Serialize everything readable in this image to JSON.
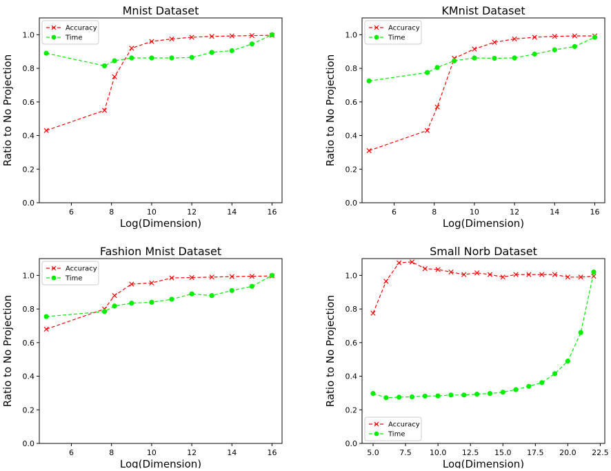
{
  "chart_data": [
    {
      "type": "line",
      "title": "Mnist Dataset",
      "xlabel": "Log(Dimension)",
      "ylabel": "Ratio to No Projection",
      "xlim": [
        4.4,
        16.5
      ],
      "ylim": [
        0,
        1.1
      ],
      "xticks": [
        6,
        8,
        10,
        12,
        14,
        16
      ],
      "xtick_labels": [
        "6",
        "8",
        "10",
        "12",
        "14",
        "16"
      ],
      "yticks": [
        0,
        0.2,
        0.4,
        0.6,
        0.8,
        1.0
      ],
      "ytick_labels": [
        "0.0",
        "0.2",
        "0.4",
        "0.6",
        "0.8",
        "1.0"
      ],
      "legend_position": "top-left",
      "series": [
        {
          "name": "Accuracy",
          "marker": "x",
          "color": "#ff0000",
          "x": [
            4.75,
            7.65,
            8.15,
            9,
            10,
            11,
            12,
            13,
            14,
            15,
            16
          ],
          "y": [
            0.43,
            0.55,
            0.75,
            0.92,
            0.96,
            0.975,
            0.985,
            0.99,
            0.993,
            0.995,
            0.997
          ]
        },
        {
          "name": "Time",
          "marker": "o",
          "color": "#00ee00",
          "x": [
            4.75,
            7.65,
            8.15,
            9,
            10,
            11,
            12,
            13,
            14,
            15,
            16
          ],
          "y": [
            0.89,
            0.815,
            0.845,
            0.862,
            0.862,
            0.862,
            0.865,
            0.895,
            0.905,
            0.945,
            1.0
          ]
        }
      ]
    },
    {
      "type": "line",
      "title": "KMnist Dataset",
      "xlabel": "Log(Dimension)",
      "ylabel": "Ratio to No Projection",
      "xlim": [
        4.4,
        16.5
      ],
      "ylim": [
        0,
        1.1
      ],
      "xticks": [
        6,
        8,
        10,
        12,
        14,
        16
      ],
      "xtick_labels": [
        "6",
        "8",
        "10",
        "12",
        "14",
        "16"
      ],
      "yticks": [
        0,
        0.2,
        0.4,
        0.6,
        0.8,
        1.0
      ],
      "ytick_labels": [
        "0.0",
        "0.2",
        "0.4",
        "0.6",
        "0.8",
        "1.0"
      ],
      "legend_position": "top-left",
      "series": [
        {
          "name": "Accuracy",
          "marker": "x",
          "color": "#ff0000",
          "x": [
            4.75,
            7.65,
            8.15,
            9,
            10,
            11,
            12,
            13,
            14,
            15,
            16
          ],
          "y": [
            0.31,
            0.43,
            0.57,
            0.86,
            0.915,
            0.955,
            0.975,
            0.985,
            0.99,
            0.993,
            0.993
          ]
        },
        {
          "name": "Time",
          "marker": "o",
          "color": "#00ee00",
          "x": [
            4.75,
            7.65,
            8.15,
            9,
            10,
            11,
            12,
            13,
            14,
            15,
            16
          ],
          "y": [
            0.725,
            0.775,
            0.805,
            0.845,
            0.862,
            0.86,
            0.862,
            0.885,
            0.91,
            0.93,
            0.985
          ]
        }
      ]
    },
    {
      "type": "line",
      "title": "Fashion Mnist Dataset",
      "xlabel": "Log(Dimension)",
      "ylabel": "Ratio to No Projection",
      "xlim": [
        4.4,
        16.5
      ],
      "ylim": [
        0,
        1.1
      ],
      "xticks": [
        6,
        8,
        10,
        12,
        14,
        16
      ],
      "xtick_labels": [
        "6",
        "8",
        "10",
        "12",
        "14",
        "16"
      ],
      "yticks": [
        0,
        0.2,
        0.4,
        0.6,
        0.8,
        1.0
      ],
      "ytick_labels": [
        "0.0",
        "0.2",
        "0.4",
        "0.6",
        "0.8",
        "1.0"
      ],
      "legend_position": "top-left",
      "series": [
        {
          "name": "Accuracy",
          "marker": "x",
          "color": "#ff0000",
          "x": [
            4.75,
            7.65,
            8.15,
            9,
            10,
            11,
            12,
            13,
            14,
            15,
            16
          ],
          "y": [
            0.68,
            0.8,
            0.88,
            0.948,
            0.955,
            0.985,
            0.987,
            0.99,
            0.993,
            0.995,
            0.997
          ]
        },
        {
          "name": "Time",
          "marker": "o",
          "color": "#00ee00",
          "x": [
            4.75,
            7.65,
            8.15,
            9,
            10,
            11,
            12,
            13,
            14,
            15,
            16
          ],
          "y": [
            0.755,
            0.785,
            0.818,
            0.835,
            0.84,
            0.858,
            0.89,
            0.88,
            0.91,
            0.935,
            1.0
          ]
        }
      ]
    },
    {
      "type": "line",
      "title": "Small Norb Dataset",
      "xlabel": "Log(Dimension)",
      "ylabel": "Ratio to No Projection",
      "xlim": [
        4.15,
        22.85
      ],
      "ylim": [
        0,
        1.1
      ],
      "xticks": [
        5,
        7.5,
        10,
        12.5,
        15,
        17.5,
        20,
        22.5
      ],
      "xtick_labels": [
        "5.0",
        "7.5",
        "10.0",
        "12.5",
        "15.0",
        "17.5",
        "20.0",
        "22.5"
      ],
      "yticks": [
        0,
        0.2,
        0.4,
        0.6,
        0.8,
        1.0
      ],
      "ytick_labels": [
        "0.0",
        "0.2",
        "0.4",
        "0.6",
        "0.8",
        "1.0"
      ],
      "legend_position": "bottom-left",
      "series": [
        {
          "name": "Accuracy",
          "marker": "x",
          "color": "#ff0000",
          "x": [
            5,
            6,
            7,
            8,
            9,
            10,
            11,
            12,
            13,
            14,
            15,
            16,
            17,
            18,
            19,
            20,
            21,
            22
          ],
          "y": [
            0.775,
            0.965,
            1.075,
            1.08,
            1.04,
            1.035,
            1.02,
            1.005,
            1.015,
            1.005,
            0.99,
            1.005,
            1.005,
            1.005,
            1.005,
            0.99,
            0.99,
            0.995
          ]
        },
        {
          "name": "Time",
          "marker": "o",
          "color": "#00ee00",
          "x": [
            5,
            6,
            7,
            8,
            9,
            10,
            11,
            12,
            13,
            14,
            15,
            16,
            17,
            18,
            19,
            20,
            21,
            22
          ],
          "y": [
            0.297,
            0.272,
            0.275,
            0.277,
            0.282,
            0.283,
            0.288,
            0.288,
            0.293,
            0.297,
            0.305,
            0.32,
            0.34,
            0.362,
            0.415,
            0.49,
            0.66,
            1.02
          ]
        }
      ]
    }
  ]
}
